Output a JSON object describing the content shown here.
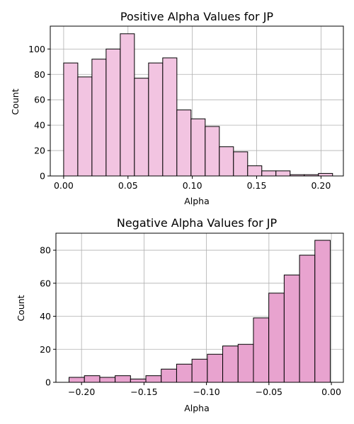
{
  "chart_data": [
    {
      "type": "bar",
      "title": "Positive Alpha Values for JP",
      "xlabel": "Alpha",
      "ylabel": "Count",
      "bin_edges": [
        0.0,
        0.011,
        0.022,
        0.033,
        0.044,
        0.055,
        0.066,
        0.077,
        0.088,
        0.099,
        0.11,
        0.121,
        0.132,
        0.143,
        0.154,
        0.165,
        0.176,
        0.187,
        0.198,
        0.209
      ],
      "values": [
        89,
        78,
        92,
        100,
        112,
        77,
        89,
        93,
        52,
        45,
        39,
        23,
        19,
        8,
        4,
        4,
        1,
        1,
        2
      ],
      "xlim": [
        -0.0104,
        0.2174
      ],
      "ylim": [
        0,
        118
      ],
      "xticks": [
        0.0,
        0.05,
        0.1,
        0.15,
        0.2
      ],
      "xtick_labels": [
        "0.00",
        "0.05",
        "0.10",
        "0.15",
        "0.20"
      ],
      "yticks": [
        0,
        20,
        40,
        60,
        80,
        100
      ],
      "ytick_labels": [
        "0",
        "20",
        "40",
        "60",
        "80",
        "100"
      ],
      "grid": true,
      "bar_color": "#f2c4e1"
    },
    {
      "type": "bar",
      "title": "Negative Alpha Values for JP",
      "xlabel": "Alpha",
      "ylabel": "Count",
      "bin_edges": [
        -0.21,
        -0.1977,
        -0.1854,
        -0.1731,
        -0.1608,
        -0.1485,
        -0.1362,
        -0.1239,
        -0.1116,
        -0.0993,
        -0.087,
        -0.0747,
        -0.0624,
        -0.0501,
        -0.0378,
        -0.0255,
        -0.0132,
        -0.0009
      ],
      "values": [
        3,
        4,
        3,
        4,
        2,
        4,
        8,
        11,
        14,
        17,
        22,
        23,
        39,
        54,
        65,
        77,
        86
      ],
      "xlim": [
        -0.2205,
        0.0096
      ],
      "ylim": [
        0,
        90.3
      ],
      "xticks": [
        -0.2,
        -0.15,
        -0.1,
        -0.05,
        0.0
      ],
      "xtick_labels": [
        "−0.20",
        "−0.15",
        "−0.10",
        "−0.05",
        "0.00"
      ],
      "yticks": [
        0,
        20,
        40,
        60,
        80
      ],
      "ytick_labels": [
        "0",
        "20",
        "40",
        "60",
        "80"
      ],
      "grid": true,
      "bar_color": "#e8a3cf"
    }
  ]
}
